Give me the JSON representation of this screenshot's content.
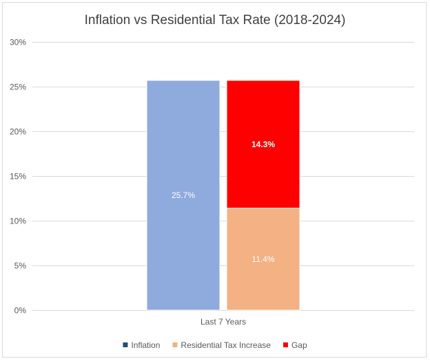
{
  "chart_data": {
    "type": "bar",
    "stacked": true,
    "title": "Inflation vs Residential Tax Rate (2018-2024)",
    "categories": [
      "Last 7 Years"
    ],
    "ylim": [
      0,
      30
    ],
    "yticks": [
      "0%",
      "5%",
      "10%",
      "15%",
      "20%",
      "25%",
      "30%"
    ],
    "grid": true,
    "legend_position": "bottom",
    "groups": [
      {
        "category": "Last 7 Years",
        "bars": [
          {
            "segments": [
              {
                "series": "Inflation",
                "value": 25.7,
                "label": "25.7%",
                "color": "#8faadc"
              }
            ]
          },
          {
            "segments": [
              {
                "series": "Residential Tax Increase",
                "value": 11.4,
                "label": "11.4%",
                "color": "#f4b183"
              },
              {
                "series": "Gap",
                "value": 14.3,
                "label": "14.3%",
                "color": "#ff0000"
              }
            ]
          }
        ]
      }
    ],
    "legend": [
      {
        "name": "Inflation",
        "color": "#1f4e79"
      },
      {
        "name": "Residential Tax Increase",
        "color": "#f4b183"
      },
      {
        "name": "Gap",
        "color": "#ff0000"
      }
    ]
  }
}
